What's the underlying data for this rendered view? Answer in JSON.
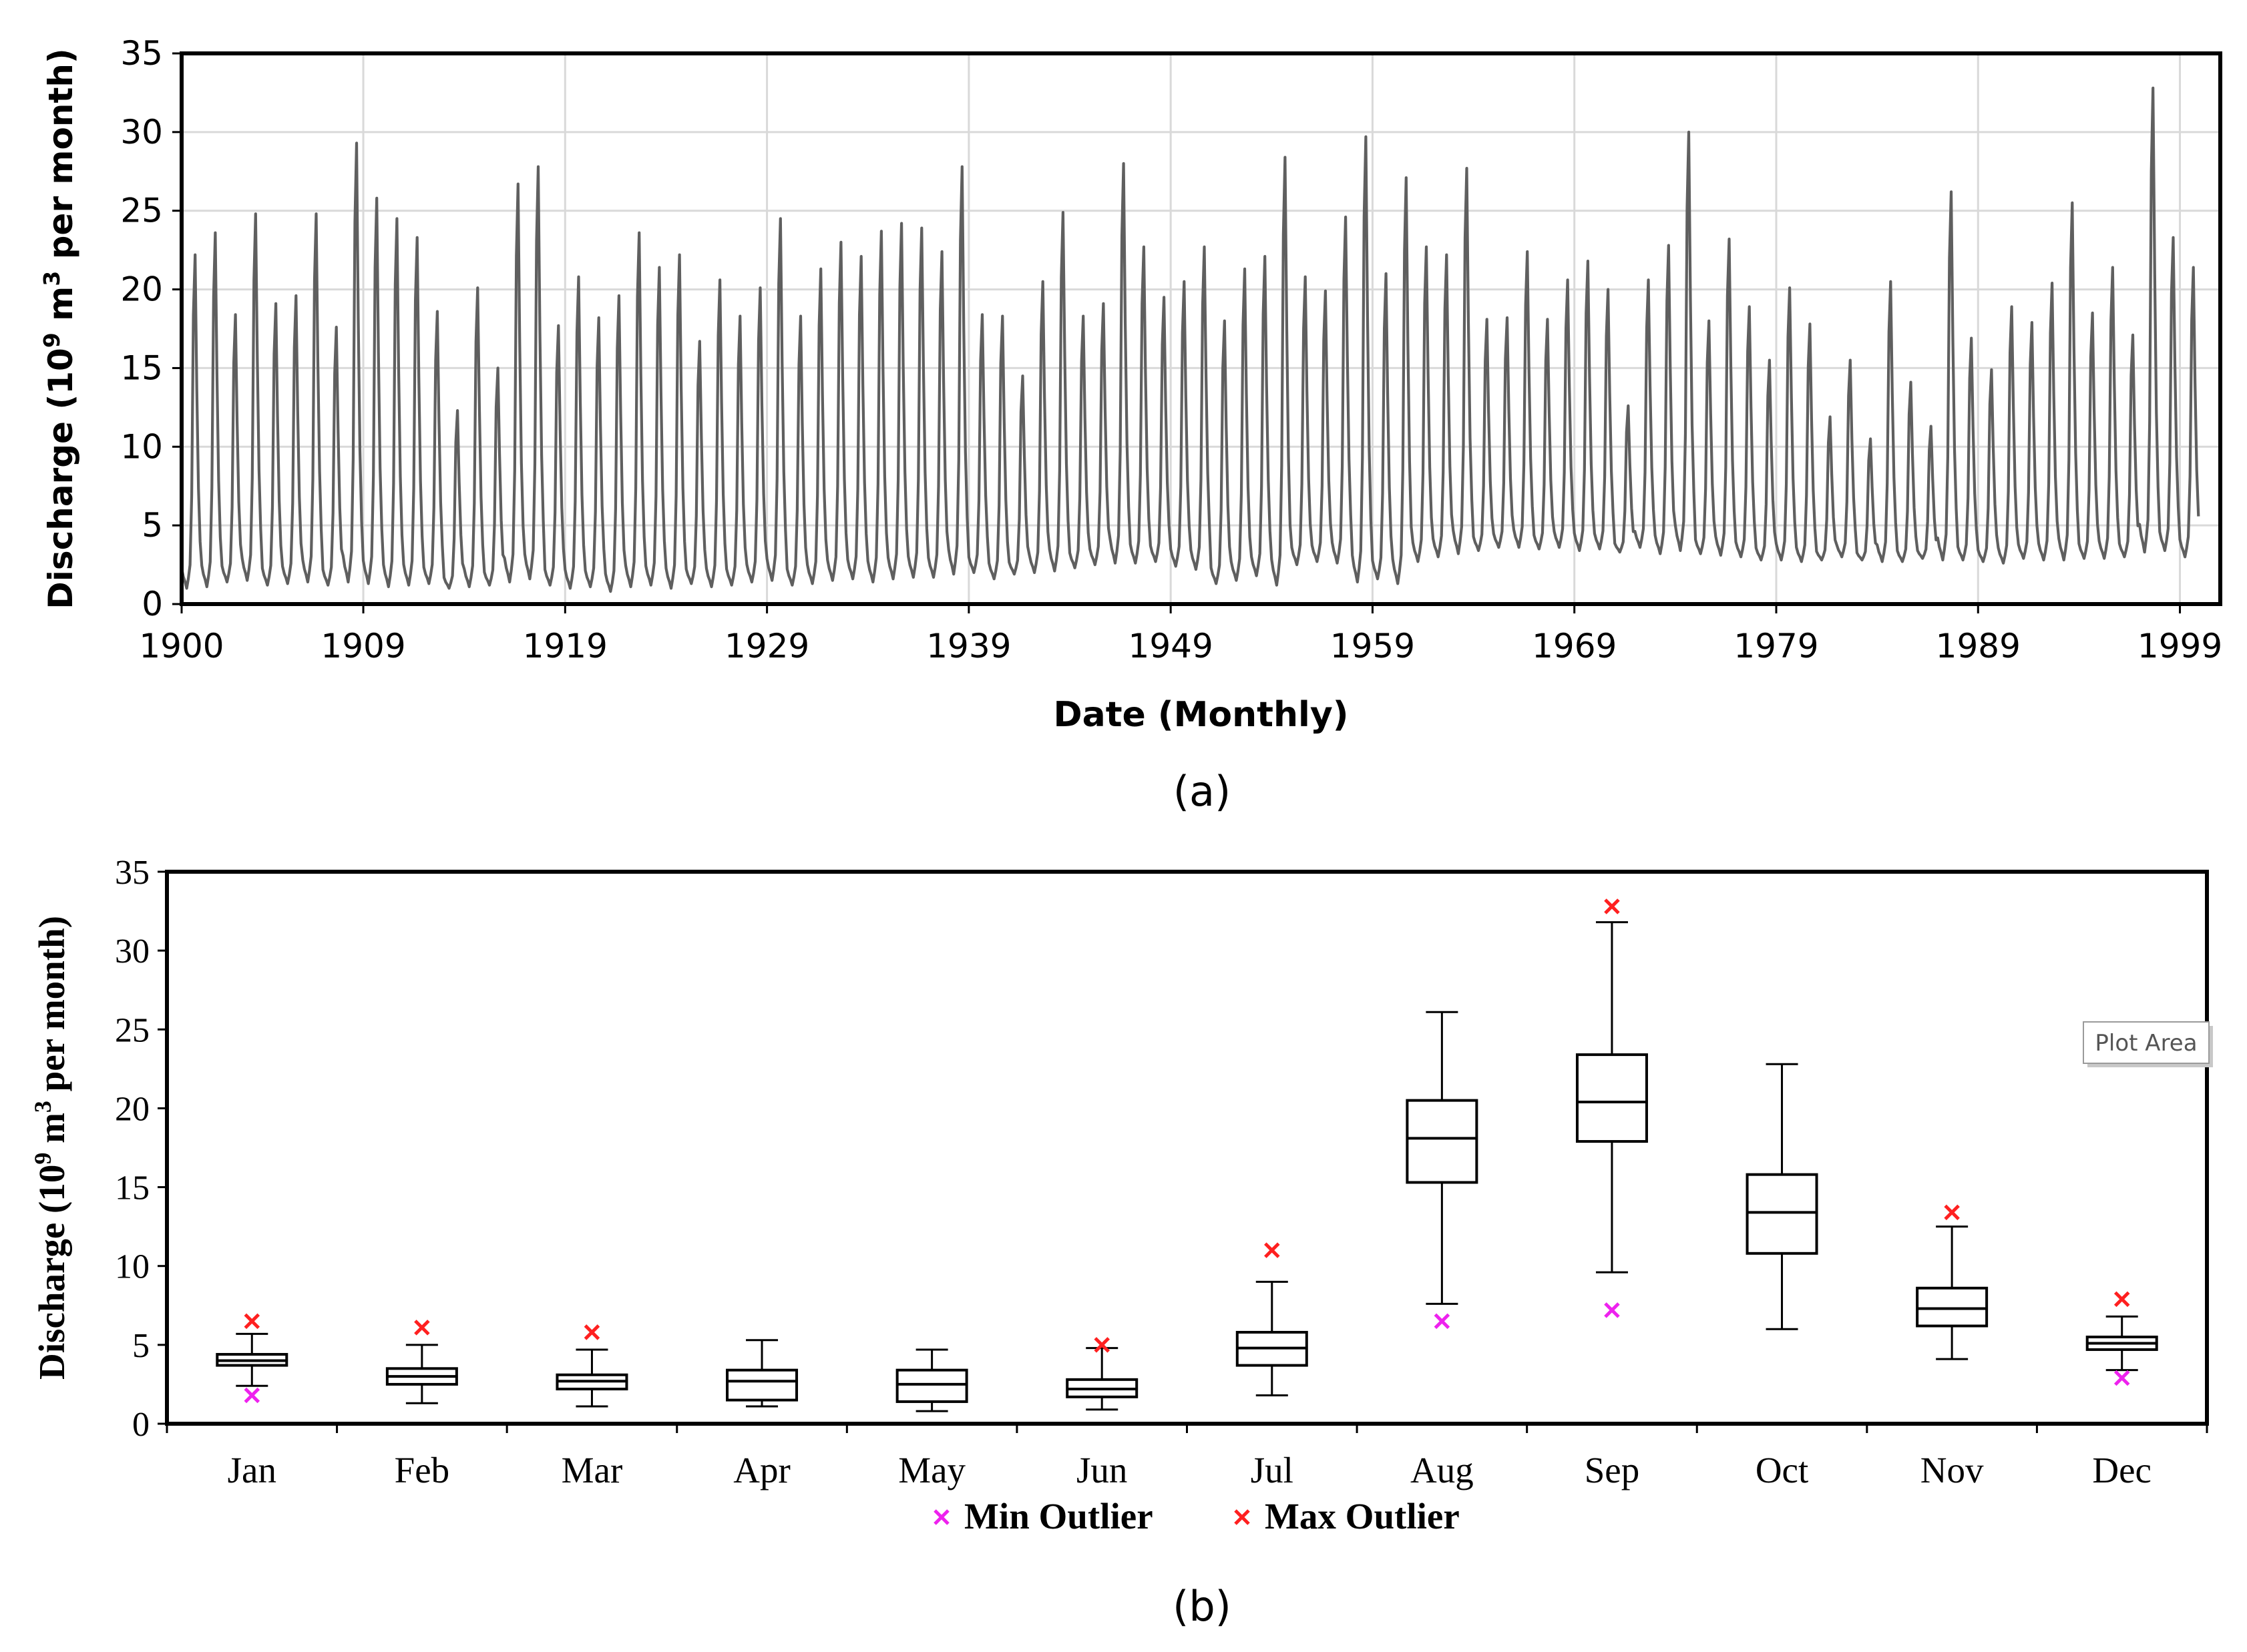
{
  "chart_data": [
    {
      "type": "line",
      "panel_label": "(a)",
      "title": "",
      "xlabel": "Date (Monthly)",
      "ylabel": "Discharge (10^9 m^3 per month)",
      "ylabel_parts": {
        "pre": "Discharge (10",
        "exp1": "9",
        "mid": " m",
        "exp2": "3",
        "post": " per month)"
      },
      "xlim": [
        1900,
        2001
      ],
      "ylim": [
        0,
        35
      ],
      "yticks": [
        0,
        5,
        10,
        15,
        20,
        25,
        30,
        35
      ],
      "xtick_values": [
        1900,
        1909,
        1919,
        1929,
        1939,
        1949,
        1959,
        1969,
        1979,
        1989,
        1999
      ],
      "xtick_labels": [
        "1900",
        "1909",
        "1919",
        "1929",
        "1939",
        "1949",
        "1959",
        "1969",
        "1979",
        "1989",
        "1999"
      ],
      "grid": true,
      "series": [
        {
          "name": "Monthly discharge",
          "color": "#5f5f5f",
          "start_year": 1900,
          "end_year": 2000,
          "annual_peaks": [
            22.2,
            23.6,
            18.4,
            24.8,
            19.1,
            19.6,
            24.8,
            17.6,
            29.3,
            25.8,
            24.5,
            23.3,
            18.6,
            12.3,
            20.1,
            15.0,
            26.7,
            27.8,
            17.7,
            20.8,
            18.2,
            19.6,
            23.6,
            21.4,
            22.2,
            16.7,
            20.6,
            18.3,
            20.1,
            24.5,
            18.3,
            21.3,
            23.0,
            22.1,
            23.7,
            24.2,
            23.9,
            22.4,
            27.8,
            18.4,
            18.3,
            14.5,
            20.5,
            24.9,
            18.3,
            19.1,
            28.0,
            22.7,
            19.5,
            20.5,
            22.7,
            18.0,
            21.3,
            22.1,
            28.4,
            20.8,
            19.9,
            24.6,
            29.7,
            21.0,
            27.1,
            22.7,
            22.2,
            27.7,
            18.1,
            18.2,
            22.4,
            18.1,
            20.6,
            21.8,
            20.0,
            12.6,
            20.6,
            22.8,
            30.0,
            18.0,
            23.2,
            18.9,
            15.5,
            20.1,
            17.8,
            11.9,
            15.5,
            10.5,
            20.5,
            14.1,
            11.3,
            26.2,
            16.9,
            14.9,
            18.9,
            17.9,
            20.4,
            25.5,
            18.5,
            21.4,
            17.1,
            32.8,
            23.3,
            21.4
          ],
          "annual_minima": [
            1.0,
            1.1,
            1.4,
            1.5,
            1.2,
            1.3,
            1.4,
            1.2,
            1.4,
            1.3,
            1.1,
            1.2,
            1.3,
            1.0,
            1.1,
            1.2,
            1.4,
            1.6,
            1.2,
            1.0,
            1.1,
            0.8,
            1.1,
            1.2,
            1.0,
            1.3,
            1.1,
            1.2,
            1.4,
            1.5,
            1.2,
            1.3,
            1.5,
            1.6,
            1.4,
            1.6,
            1.7,
            1.7,
            1.9,
            2.0,
            1.6,
            1.9,
            2.0,
            2.1,
            2.3,
            2.5,
            2.6,
            2.6,
            2.7,
            2.4,
            2.2,
            1.3,
            1.5,
            1.8,
            1.2,
            2.5,
            2.7,
            2.6,
            1.4,
            1.6,
            1.3,
            2.7,
            3.0,
            3.2,
            3.4,
            3.6,
            3.6,
            3.5,
            3.6,
            3.4,
            3.5,
            3.3,
            3.6,
            3.2,
            3.4,
            3.2,
            3.1,
            3.0,
            2.8,
            2.8,
            2.7,
            2.8,
            3.0,
            2.8,
            2.7,
            2.7,
            2.9,
            2.8,
            2.8,
            2.7,
            2.6,
            2.9,
            2.8,
            2.8,
            2.9,
            2.9,
            3.0,
            3.3,
            3.4,
            3.0
          ]
        }
      ]
    },
    {
      "type": "box",
      "panel_label": "(b)",
      "title": "",
      "xlabel": "",
      "ylabel": "Discharge (10^9 m^3 per month)",
      "ylabel_parts": {
        "pre": "Discharge (10",
        "exp1": "9",
        "mid": " m",
        "exp2": "3",
        "post": " per month)"
      },
      "ylim": [
        0,
        35
      ],
      "yticks": [
        0,
        5,
        10,
        15,
        20,
        25,
        30,
        35
      ],
      "grid": false,
      "categories": [
        "Jan",
        "Feb",
        "Mar",
        "Apr",
        "May",
        "Jun",
        "Jul",
        "Aug",
        "Sep",
        "Oct",
        "Nov",
        "Dec"
      ],
      "boxes": [
        {
          "min": 2.4,
          "q1": 3.7,
          "median": 4.0,
          "q3": 4.4,
          "max": 5.7,
          "min_outlier": 1.8,
          "max_outlier": 6.5
        },
        {
          "min": 1.3,
          "q1": 2.5,
          "median": 3.0,
          "q3": 3.5,
          "max": 5.0,
          "min_outlier": null,
          "max_outlier": 6.1
        },
        {
          "min": 1.1,
          "q1": 2.2,
          "median": 2.7,
          "q3": 3.1,
          "max": 4.7,
          "min_outlier": null,
          "max_outlier": 5.8
        },
        {
          "min": 1.1,
          "q1": 1.5,
          "median": 2.7,
          "q3": 3.4,
          "max": 5.3,
          "min_outlier": null,
          "max_outlier": null
        },
        {
          "min": 0.8,
          "q1": 1.4,
          "median": 2.5,
          "q3": 3.4,
          "max": 4.7,
          "min_outlier": null,
          "max_outlier": null
        },
        {
          "min": 0.9,
          "q1": 1.7,
          "median": 2.2,
          "q3": 2.8,
          "max": 4.8,
          "min_outlier": null,
          "max_outlier": 5.0
        },
        {
          "min": 1.8,
          "q1": 3.7,
          "median": 4.8,
          "q3": 5.8,
          "max": 9.0,
          "min_outlier": null,
          "max_outlier": 11.0
        },
        {
          "min": 7.6,
          "q1": 15.3,
          "median": 18.1,
          "q3": 20.5,
          "max": 26.1,
          "min_outlier": 6.5,
          "max_outlier": null
        },
        {
          "min": 9.6,
          "q1": 17.9,
          "median": 20.4,
          "q3": 23.4,
          "max": 31.8,
          "min_outlier": 7.2,
          "max_outlier": 32.8
        },
        {
          "min": 6.0,
          "q1": 10.8,
          "median": 13.4,
          "q3": 15.8,
          "max": 22.8,
          "min_outlier": null,
          "max_outlier": null
        },
        {
          "min": 4.1,
          "q1": 6.2,
          "median": 7.3,
          "q3": 8.6,
          "max": 12.5,
          "min_outlier": null,
          "max_outlier": 13.4
        },
        {
          "min": 3.4,
          "q1": 4.7,
          "median": 5.1,
          "q3": 5.5,
          "max": 6.8,
          "min_outlier": 2.9,
          "max_outlier": 7.9
        }
      ],
      "legend": [
        {
          "label": "Min Outlier",
          "marker": "×",
          "color": "#ee22ee"
        },
        {
          "label": "Max Outlier",
          "marker": "×",
          "color": "#ff2020"
        }
      ],
      "legend_position": "bottom",
      "tooltip": "Plot Area"
    }
  ]
}
